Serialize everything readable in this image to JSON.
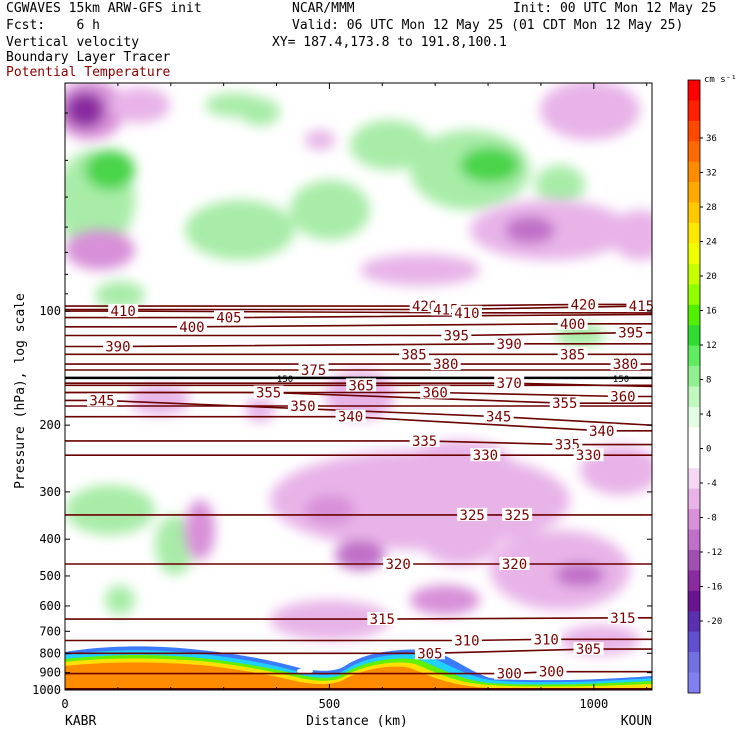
{
  "header": {
    "model": "CGWAVES 15km ARW-GFS init",
    "org": "NCAR/MMM",
    "init": "Init: 00 UTC Mon 12 May 25",
    "fcst": "Fcst:    6 h",
    "valid": "Valid: 06 UTC Mon 12 May 25 (01 CDT Mon 12 May 25)",
    "field1": "Vertical velocity",
    "xy": "XY= 187.4,173.8 to 191.8,100.1",
    "field2": "Boundary Layer Tracer",
    "field3": "Potential Temperature",
    "field3_color": "#8b0000"
  },
  "chart_data": {
    "type": "heatmap",
    "title": "",
    "xlabel": "Distance (km)",
    "ylabel": "Pressure (hPa), log scale",
    "xlim": [
      0,
      1110
    ],
    "ylim": [
      1000,
      25
    ],
    "x_ticks": [
      0,
      500,
      1000
    ],
    "y_ticks": [
      100,
      200,
      300,
      400,
      500,
      600,
      700,
      800,
      900,
      1000
    ],
    "y_tick_labels": [
      "100",
      "200",
      "300",
      "400",
      "500",
      "600",
      "700",
      "800",
      "900",
      "1000"
    ],
    "endpoint_left": "KABR",
    "endpoint_right": "KOUN",
    "tropopause_label": "150",
    "colorbar": {
      "units": "cm s⁻¹",
      "labels": [
        "36",
        "32",
        "28",
        "24",
        "20",
        "16",
        "12",
        "8",
        "4",
        "0",
        "-4",
        "-8",
        "-12",
        "-16",
        "-20"
      ],
      "colors": [
        "#ff0000",
        "#ff2000",
        "#ff4800",
        "#ff6a00",
        "#ff8c00",
        "#ffaa00",
        "#ffc800",
        "#ffe800",
        "#f0ff00",
        "#c8ff00",
        "#90ff00",
        "#50f000",
        "#30dc30",
        "#60ec60",
        "#90f090",
        "#c0f8c0",
        "#e4fce4",
        "#ffffff",
        "#ffffff",
        "#f4d8f4",
        "#e8b4e8",
        "#d890d8",
        "#c070c8",
        "#a050b0",
        "#8a2ca0",
        "#6a1490",
        "#5a30b0",
        "#6050d0",
        "#7070e0",
        "#8080f0"
      ]
    },
    "isentropes": [
      {
        "theta": 420,
        "labels": [
          [
            680,
            97
          ],
          [
            980,
            96
          ]
        ]
      },
      {
        "theta": 415,
        "labels": [
          [
            720,
            99
          ],
          [
            1090,
            97
          ]
        ]
      },
      {
        "theta": 410,
        "labels": [
          [
            110,
            100
          ],
          [
            760,
            101
          ]
        ]
      },
      {
        "theta": 405,
        "labels": [
          [
            310,
            104
          ],
          [
            1160,
            102
          ]
        ]
      },
      {
        "theta": 400,
        "labels": [
          [
            240,
            110
          ],
          [
            960,
            108
          ]
        ]
      },
      {
        "theta": 395,
        "labels": [
          [
            740,
            116
          ],
          [
            1070,
            114
          ]
        ]
      },
      {
        "theta": 390,
        "labels": [
          [
            100,
            124
          ],
          [
            840,
            122
          ],
          [
            1150,
            122
          ]
        ]
      },
      {
        "theta": 385,
        "labels": [
          [
            660,
            130
          ],
          [
            960,
            130
          ]
        ]
      },
      {
        "theta": 380,
        "labels": [
          [
            720,
            138
          ],
          [
            1060,
            138
          ]
        ]
      },
      {
        "theta": 375,
        "labels": [
          [
            470,
            143
          ]
        ]
      },
      {
        "theta": 370,
        "labels": [
          [
            840,
            155
          ],
          [
            1170,
            158
          ]
        ]
      },
      {
        "theta": 365,
        "labels": [
          [
            560,
            157
          ]
        ]
      },
      {
        "theta": 360,
        "labels": [
          [
            700,
            164
          ],
          [
            1055,
            168
          ]
        ]
      },
      {
        "theta": 355,
        "labels": [
          [
            385,
            164
          ],
          [
            945,
            175
          ]
        ]
      },
      {
        "theta": 350,
        "labels": [
          [
            450,
            178
          ]
        ]
      },
      {
        "theta": 345,
        "labels": [
          [
            70,
            172
          ],
          [
            820,
            190
          ],
          [
            1160,
            200
          ]
        ]
      },
      {
        "theta": 340,
        "labels": [
          [
            540,
            190
          ],
          [
            1015,
            207
          ]
        ]
      },
      {
        "theta": 335,
        "labels": [
          [
            680,
            220
          ],
          [
            950,
            225
          ]
        ]
      },
      {
        "theta": 330,
        "labels": [
          [
            795,
            240
          ],
          [
            990,
            240
          ]
        ]
      },
      {
        "theta": 325,
        "labels": [
          [
            770,
            345
          ],
          [
            855,
            345
          ]
        ]
      },
      {
        "theta": 320,
        "labels": [
          [
            630,
            465
          ],
          [
            850,
            465
          ]
        ]
      },
      {
        "theta": 315,
        "labels": [
          [
            600,
            650
          ],
          [
            1055,
            645
          ]
        ]
      },
      {
        "theta": 310,
        "labels": [
          [
            760,
            740
          ],
          [
            910,
            735
          ]
        ]
      },
      {
        "theta": 305,
        "labels": [
          [
            690,
            800
          ],
          [
            990,
            780
          ]
        ]
      },
      {
        "theta": 300,
        "labels": [
          [
            840,
            905
          ],
          [
            920,
            895
          ]
        ]
      }
    ]
  }
}
